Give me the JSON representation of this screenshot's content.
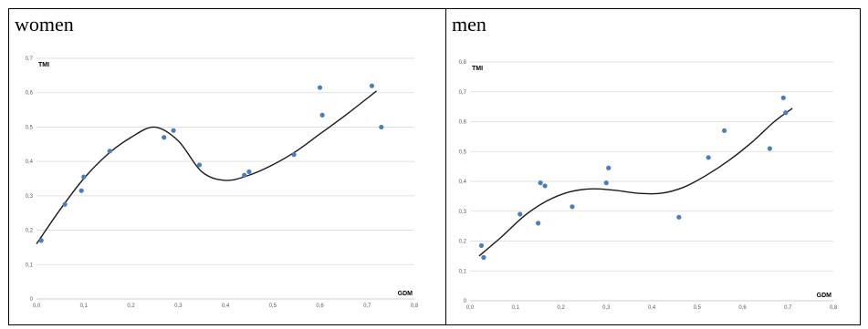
{
  "chart_data": [
    {
      "type": "scatter",
      "title": "women",
      "xlabel": "GDM",
      "ylabel": "TMI",
      "xlim": [
        0,
        0.8
      ],
      "ylim": [
        0,
        0.7
      ],
      "xticks": [
        "0,0",
        "0,1",
        "0,2",
        "0,3",
        "0,4",
        "0,5",
        "0,6",
        "0,7",
        "0,8"
      ],
      "yticks": [
        "0",
        "0,1",
        "0,2",
        "0,3",
        "0,4",
        "0,5",
        "0,6",
        "0,7"
      ],
      "grid": true,
      "points": [
        {
          "x": 0.01,
          "y": 0.17
        },
        {
          "x": 0.06,
          "y": 0.275
        },
        {
          "x": 0.095,
          "y": 0.315
        },
        {
          "x": 0.1,
          "y": 0.355
        },
        {
          "x": 0.155,
          "y": 0.43
        },
        {
          "x": 0.27,
          "y": 0.47
        },
        {
          "x": 0.29,
          "y": 0.49
        },
        {
          "x": 0.345,
          "y": 0.39
        },
        {
          "x": 0.44,
          "y": 0.36
        },
        {
          "x": 0.45,
          "y": 0.37
        },
        {
          "x": 0.545,
          "y": 0.42
        },
        {
          "x": 0.6,
          "y": 0.615
        },
        {
          "x": 0.605,
          "y": 0.535
        },
        {
          "x": 0.71,
          "y": 0.62
        },
        {
          "x": 0.73,
          "y": 0.5
        }
      ],
      "trendline": [
        {
          "x": 0.0,
          "y": 0.16
        },
        {
          "x": 0.05,
          "y": 0.26
        },
        {
          "x": 0.1,
          "y": 0.35
        },
        {
          "x": 0.15,
          "y": 0.42
        },
        {
          "x": 0.2,
          "y": 0.47
        },
        {
          "x": 0.25,
          "y": 0.5
        },
        {
          "x": 0.3,
          "y": 0.46
        },
        {
          "x": 0.35,
          "y": 0.37
        },
        {
          "x": 0.4,
          "y": 0.345
        },
        {
          "x": 0.45,
          "y": 0.36
        },
        {
          "x": 0.5,
          "y": 0.39
        },
        {
          "x": 0.55,
          "y": 0.43
        },
        {
          "x": 0.6,
          "y": 0.48
        },
        {
          "x": 0.65,
          "y": 0.53
        },
        {
          "x": 0.72,
          "y": 0.605
        }
      ]
    },
    {
      "type": "scatter",
      "title": "men",
      "xlabel": "GDM",
      "ylabel": "TMI",
      "xlim": [
        0,
        0.8
      ],
      "ylim": [
        0,
        0.8
      ],
      "xticks": [
        "0,0",
        "0,1",
        "0,2",
        "0,3",
        "0,4",
        "0,5",
        "0,6",
        "0,7",
        "0,8"
      ],
      "yticks": [
        "0",
        "0,1",
        "0,2",
        "0,3",
        "0,4",
        "0,5",
        "0,6",
        "0,7",
        "0,8"
      ],
      "grid": true,
      "points": [
        {
          "x": 0.025,
          "y": 0.185
        },
        {
          "x": 0.03,
          "y": 0.145
        },
        {
          "x": 0.11,
          "y": 0.29
        },
        {
          "x": 0.15,
          "y": 0.26
        },
        {
          "x": 0.155,
          "y": 0.395
        },
        {
          "x": 0.165,
          "y": 0.385
        },
        {
          "x": 0.225,
          "y": 0.315
        },
        {
          "x": 0.3,
          "y": 0.395
        },
        {
          "x": 0.305,
          "y": 0.445
        },
        {
          "x": 0.46,
          "y": 0.28
        },
        {
          "x": 0.525,
          "y": 0.48
        },
        {
          "x": 0.56,
          "y": 0.57
        },
        {
          "x": 0.66,
          "y": 0.51
        },
        {
          "x": 0.69,
          "y": 0.68
        },
        {
          "x": 0.695,
          "y": 0.63
        }
      ],
      "trendline": [
        {
          "x": 0.02,
          "y": 0.15
        },
        {
          "x": 0.07,
          "y": 0.215
        },
        {
          "x": 0.12,
          "y": 0.285
        },
        {
          "x": 0.17,
          "y": 0.335
        },
        {
          "x": 0.22,
          "y": 0.365
        },
        {
          "x": 0.27,
          "y": 0.375
        },
        {
          "x": 0.32,
          "y": 0.37
        },
        {
          "x": 0.37,
          "y": 0.36
        },
        {
          "x": 0.42,
          "y": 0.36
        },
        {
          "x": 0.47,
          "y": 0.38
        },
        {
          "x": 0.52,
          "y": 0.42
        },
        {
          "x": 0.57,
          "y": 0.47
        },
        {
          "x": 0.62,
          "y": 0.53
        },
        {
          "x": 0.67,
          "y": 0.6
        },
        {
          "x": 0.71,
          "y": 0.645
        }
      ]
    }
  ]
}
